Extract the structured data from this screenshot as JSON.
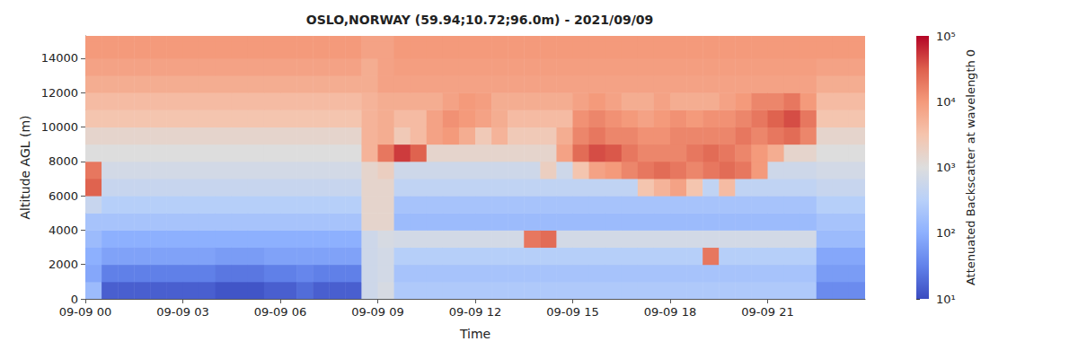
{
  "chart_data": {
    "type": "heatmap",
    "title": "OSLO,NORWAY (59.94;10.72;96.0m) - 2021/09/09",
    "x_label": "Time",
    "y_label": "Altitude AGL (m)",
    "xlim": [
      0,
      24
    ],
    "ylim": [
      0,
      15300
    ],
    "xticks": [
      {
        "value": 0,
        "label": "09-09 00"
      },
      {
        "value": 3,
        "label": "09-09 03"
      },
      {
        "value": 6,
        "label": "09-09 06"
      },
      {
        "value": 9,
        "label": "09-09 09"
      },
      {
        "value": 12,
        "label": "09-09 12"
      },
      {
        "value": 15,
        "label": "09-09 15"
      },
      {
        "value": 18,
        "label": "09-09 18"
      },
      {
        "value": 21,
        "label": "09-09 21"
      }
    ],
    "yticks": [
      0,
      2000,
      4000,
      6000,
      8000,
      10000,
      12000,
      14000
    ],
    "grid": false,
    "x": [
      0,
      0.5,
      1,
      1.5,
      2,
      2.5,
      3,
      3.5,
      4,
      4.5,
      5,
      5.5,
      6,
      6.5,
      7,
      7.5,
      8,
      8.5,
      9,
      9.5,
      10,
      10.5,
      11,
      11.5,
      12,
      12.5,
      13,
      13.5,
      14,
      14.5,
      15,
      15.5,
      16,
      16.5,
      17,
      17.5,
      18,
      18.5,
      19,
      19.5,
      20,
      20.5,
      21,
      21.5,
      22,
      22.5,
      23,
      23.5
    ],
    "y": [
      0,
      1000,
      2000,
      3000,
      4000,
      5000,
      6000,
      7000,
      8000,
      9000,
      10000,
      11000,
      12000,
      13000,
      14000,
      15000
    ],
    "values": [
      [
        150,
        80,
        100,
        150,
        200,
        500,
        30000,
        20000,
        1000,
        1500,
        3000,
        4000,
        6000,
        8000,
        10000,
        10000
      ],
      [
        15,
        30,
        70,
        100,
        200,
        300,
        500,
        700,
        1000,
        1500,
        3000,
        4000,
        6000,
        8000,
        10000,
        10000
      ],
      [
        15,
        30,
        70,
        100,
        200,
        300,
        500,
        700,
        1000,
        1500,
        3000,
        4000,
        6000,
        8000,
        10000,
        10000
      ],
      [
        15,
        30,
        70,
        100,
        200,
        300,
        500,
        700,
        1000,
        1500,
        3000,
        4000,
        6000,
        8000,
        10000,
        10000
      ],
      [
        15,
        30,
        70,
        100,
        200,
        300,
        500,
        700,
        1000,
        1500,
        3000,
        4000,
        6000,
        8000,
        10000,
        10000
      ],
      [
        15,
        30,
        70,
        100,
        200,
        300,
        500,
        700,
        1000,
        1500,
        3000,
        4000,
        6000,
        8000,
        10000,
        10000
      ],
      [
        15,
        30,
        70,
        100,
        200,
        300,
        500,
        700,
        1000,
        1500,
        3000,
        4000,
        6000,
        8000,
        10000,
        10000
      ],
      [
        15,
        30,
        70,
        100,
        200,
        300,
        500,
        700,
        1000,
        1500,
        3000,
        4000,
        6000,
        8000,
        10000,
        10000
      ],
      [
        12,
        25,
        60,
        100,
        200,
        300,
        500,
        700,
        1000,
        1500,
        3000,
        4000,
        6000,
        8000,
        10000,
        10000
      ],
      [
        12,
        25,
        60,
        100,
        200,
        300,
        500,
        700,
        1000,
        1500,
        3000,
        4000,
        6000,
        8000,
        10000,
        10000
      ],
      [
        12,
        25,
        60,
        100,
        200,
        300,
        500,
        700,
        1000,
        1500,
        3000,
        4000,
        6000,
        8000,
        10000,
        10000
      ],
      [
        15,
        30,
        70,
        100,
        200,
        300,
        500,
        700,
        1000,
        1500,
        3000,
        4000,
        6000,
        8000,
        10000,
        10000
      ],
      [
        15,
        30,
        70,
        100,
        200,
        300,
        500,
        700,
        1000,
        1500,
        3000,
        4000,
        6000,
        8000,
        10000,
        10000
      ],
      [
        20,
        35,
        70,
        100,
        200,
        300,
        500,
        700,
        1000,
        1500,
        3000,
        4000,
        6000,
        8000,
        10000,
        10000
      ],
      [
        15,
        30,
        70,
        100,
        200,
        300,
        500,
        700,
        1000,
        1500,
        3000,
        4000,
        6000,
        8000,
        10000,
        10000
      ],
      [
        15,
        30,
        70,
        100,
        200,
        300,
        500,
        700,
        1000,
        1500,
        3000,
        4000,
        6000,
        8000,
        10000,
        10000
      ],
      [
        15,
        30,
        70,
        100,
        200,
        300,
        500,
        700,
        1000,
        1500,
        3000,
        4000,
        6000,
        8000,
        10000,
        10000
      ],
      [
        600,
        600,
        600,
        600,
        1500,
        1500,
        1500,
        1500,
        5000,
        5000,
        5000,
        5000,
        6000,
        6000,
        8000,
        8000
      ],
      [
        800,
        700,
        700,
        800,
        1500,
        1500,
        1500,
        2000,
        20000,
        6000,
        6000,
        6000,
        8000,
        8000,
        8000,
        8000
      ],
      [
        250,
        200,
        300,
        700,
        150,
        200,
        400,
        600,
        50000,
        2500,
        4000,
        6000,
        8000,
        9000,
        10000,
        10000
      ],
      [
        250,
        200,
        300,
        700,
        150,
        200,
        400,
        600,
        30000,
        4000,
        4000,
        6000,
        8000,
        9000,
        10000,
        10000
      ],
      [
        250,
        200,
        300,
        700,
        150,
        200,
        400,
        600,
        1500,
        8000,
        8000,
        6000,
        8000,
        9000,
        10000,
        10000
      ],
      [
        250,
        200,
        300,
        700,
        150,
        200,
        400,
        600,
        1500,
        10000,
        12000,
        8000,
        8000,
        9000,
        10000,
        10000
      ],
      [
        250,
        200,
        300,
        700,
        150,
        200,
        400,
        600,
        1500,
        6000,
        10000,
        10000,
        8000,
        9000,
        10000,
        10000
      ],
      [
        250,
        200,
        300,
        700,
        150,
        200,
        400,
        600,
        1500,
        2500,
        8000,
        9000,
        8000,
        9000,
        10000,
        10000
      ],
      [
        250,
        200,
        300,
        700,
        150,
        200,
        400,
        600,
        1500,
        5000,
        6000,
        6000,
        8000,
        9000,
        10000,
        10000
      ],
      [
        250,
        200,
        300,
        700,
        150,
        200,
        400,
        600,
        1500,
        2500,
        4000,
        6000,
        8000,
        9000,
        10000,
        10000
      ],
      [
        250,
        200,
        300,
        20000,
        150,
        200,
        400,
        600,
        1500,
        2500,
        4000,
        6000,
        8000,
        9000,
        10000,
        10000
      ],
      [
        250,
        200,
        300,
        25000,
        150,
        200,
        400,
        2000,
        1500,
        2500,
        4000,
        6000,
        8000,
        9000,
        10000,
        10000
      ],
      [
        250,
        200,
        300,
        700,
        150,
        200,
        400,
        600,
        8000,
        6000,
        4000,
        6000,
        8000,
        9000,
        10000,
        10000
      ],
      [
        250,
        200,
        300,
        700,
        150,
        200,
        400,
        3000,
        25000,
        15000,
        12000,
        8000,
        8000,
        9000,
        10000,
        10000
      ],
      [
        250,
        200,
        300,
        700,
        150,
        200,
        400,
        8000,
        40000,
        20000,
        15000,
        10000,
        8000,
        9000,
        10000,
        10000
      ],
      [
        250,
        200,
        300,
        700,
        150,
        200,
        400,
        10000,
        35000,
        15000,
        12000,
        8000,
        8000,
        9000,
        10000,
        10000
      ],
      [
        250,
        200,
        300,
        700,
        150,
        200,
        400,
        15000,
        20000,
        15000,
        10000,
        6000,
        8000,
        9000,
        10000,
        10000
      ],
      [
        250,
        200,
        300,
        700,
        150,
        200,
        3000,
        20000,
        15000,
        12000,
        8000,
        6000,
        8000,
        9000,
        10000,
        10000
      ],
      [
        250,
        200,
        300,
        700,
        150,
        200,
        5000,
        25000,
        15000,
        12000,
        10000,
        8000,
        8000,
        9000,
        10000,
        10000
      ],
      [
        250,
        200,
        300,
        700,
        150,
        200,
        8000,
        20000,
        15000,
        15000,
        12000,
        6000,
        8000,
        9000,
        10000,
        10000
      ],
      [
        250,
        200,
        300,
        700,
        150,
        200,
        3000,
        15000,
        20000,
        15000,
        10000,
        6000,
        8000,
        9000,
        10000,
        10000
      ],
      [
        250,
        200,
        20000,
        700,
        150,
        200,
        400,
        20000,
        25000,
        15000,
        12000,
        6000,
        8000,
        9000,
        10000,
        10000
      ],
      [
        250,
        200,
        300,
        700,
        150,
        200,
        4000,
        25000,
        20000,
        15000,
        12000,
        8000,
        8000,
        9000,
        10000,
        10000
      ],
      [
        250,
        200,
        300,
        700,
        150,
        200,
        400,
        20000,
        15000,
        20000,
        15000,
        10000,
        8000,
        9000,
        10000,
        10000
      ],
      [
        250,
        200,
        300,
        700,
        150,
        200,
        400,
        10000,
        10000,
        15000,
        20000,
        15000,
        8000,
        9000,
        10000,
        10000
      ],
      [
        250,
        200,
        300,
        700,
        150,
        200,
        400,
        600,
        6000,
        20000,
        30000,
        15000,
        8000,
        9000,
        10000,
        10000
      ],
      [
        250,
        200,
        300,
        700,
        150,
        200,
        400,
        600,
        1500,
        25000,
        40000,
        20000,
        8000,
        9000,
        10000,
        10000
      ],
      [
        250,
        200,
        300,
        700,
        150,
        200,
        400,
        600,
        1500,
        15000,
        20000,
        10000,
        8000,
        9000,
        10000,
        10000
      ],
      [
        40,
        60,
        80,
        150,
        200,
        300,
        500,
        700,
        1000,
        1500,
        3000,
        4000,
        6000,
        8000,
        10000,
        10000
      ],
      [
        40,
        60,
        80,
        150,
        200,
        300,
        500,
        700,
        1000,
        1500,
        3000,
        4000,
        6000,
        8000,
        10000,
        10000
      ],
      [
        40,
        60,
        80,
        150,
        200,
        300,
        500,
        700,
        1000,
        1500,
        3000,
        4000,
        6000,
        8000,
        10000,
        10000
      ]
    ],
    "colorbar": {
      "label": "Attenuated Backscatter at wavelength 0",
      "range": [
        10,
        100000
      ],
      "ticks": [
        {
          "value": 10,
          "label": "10¹"
        },
        {
          "value": 100,
          "label": "10²"
        },
        {
          "value": 1000,
          "label": "10³"
        },
        {
          "value": 10000,
          "label": "10⁴"
        },
        {
          "value": 100000,
          "label": "10⁵"
        }
      ]
    }
  }
}
